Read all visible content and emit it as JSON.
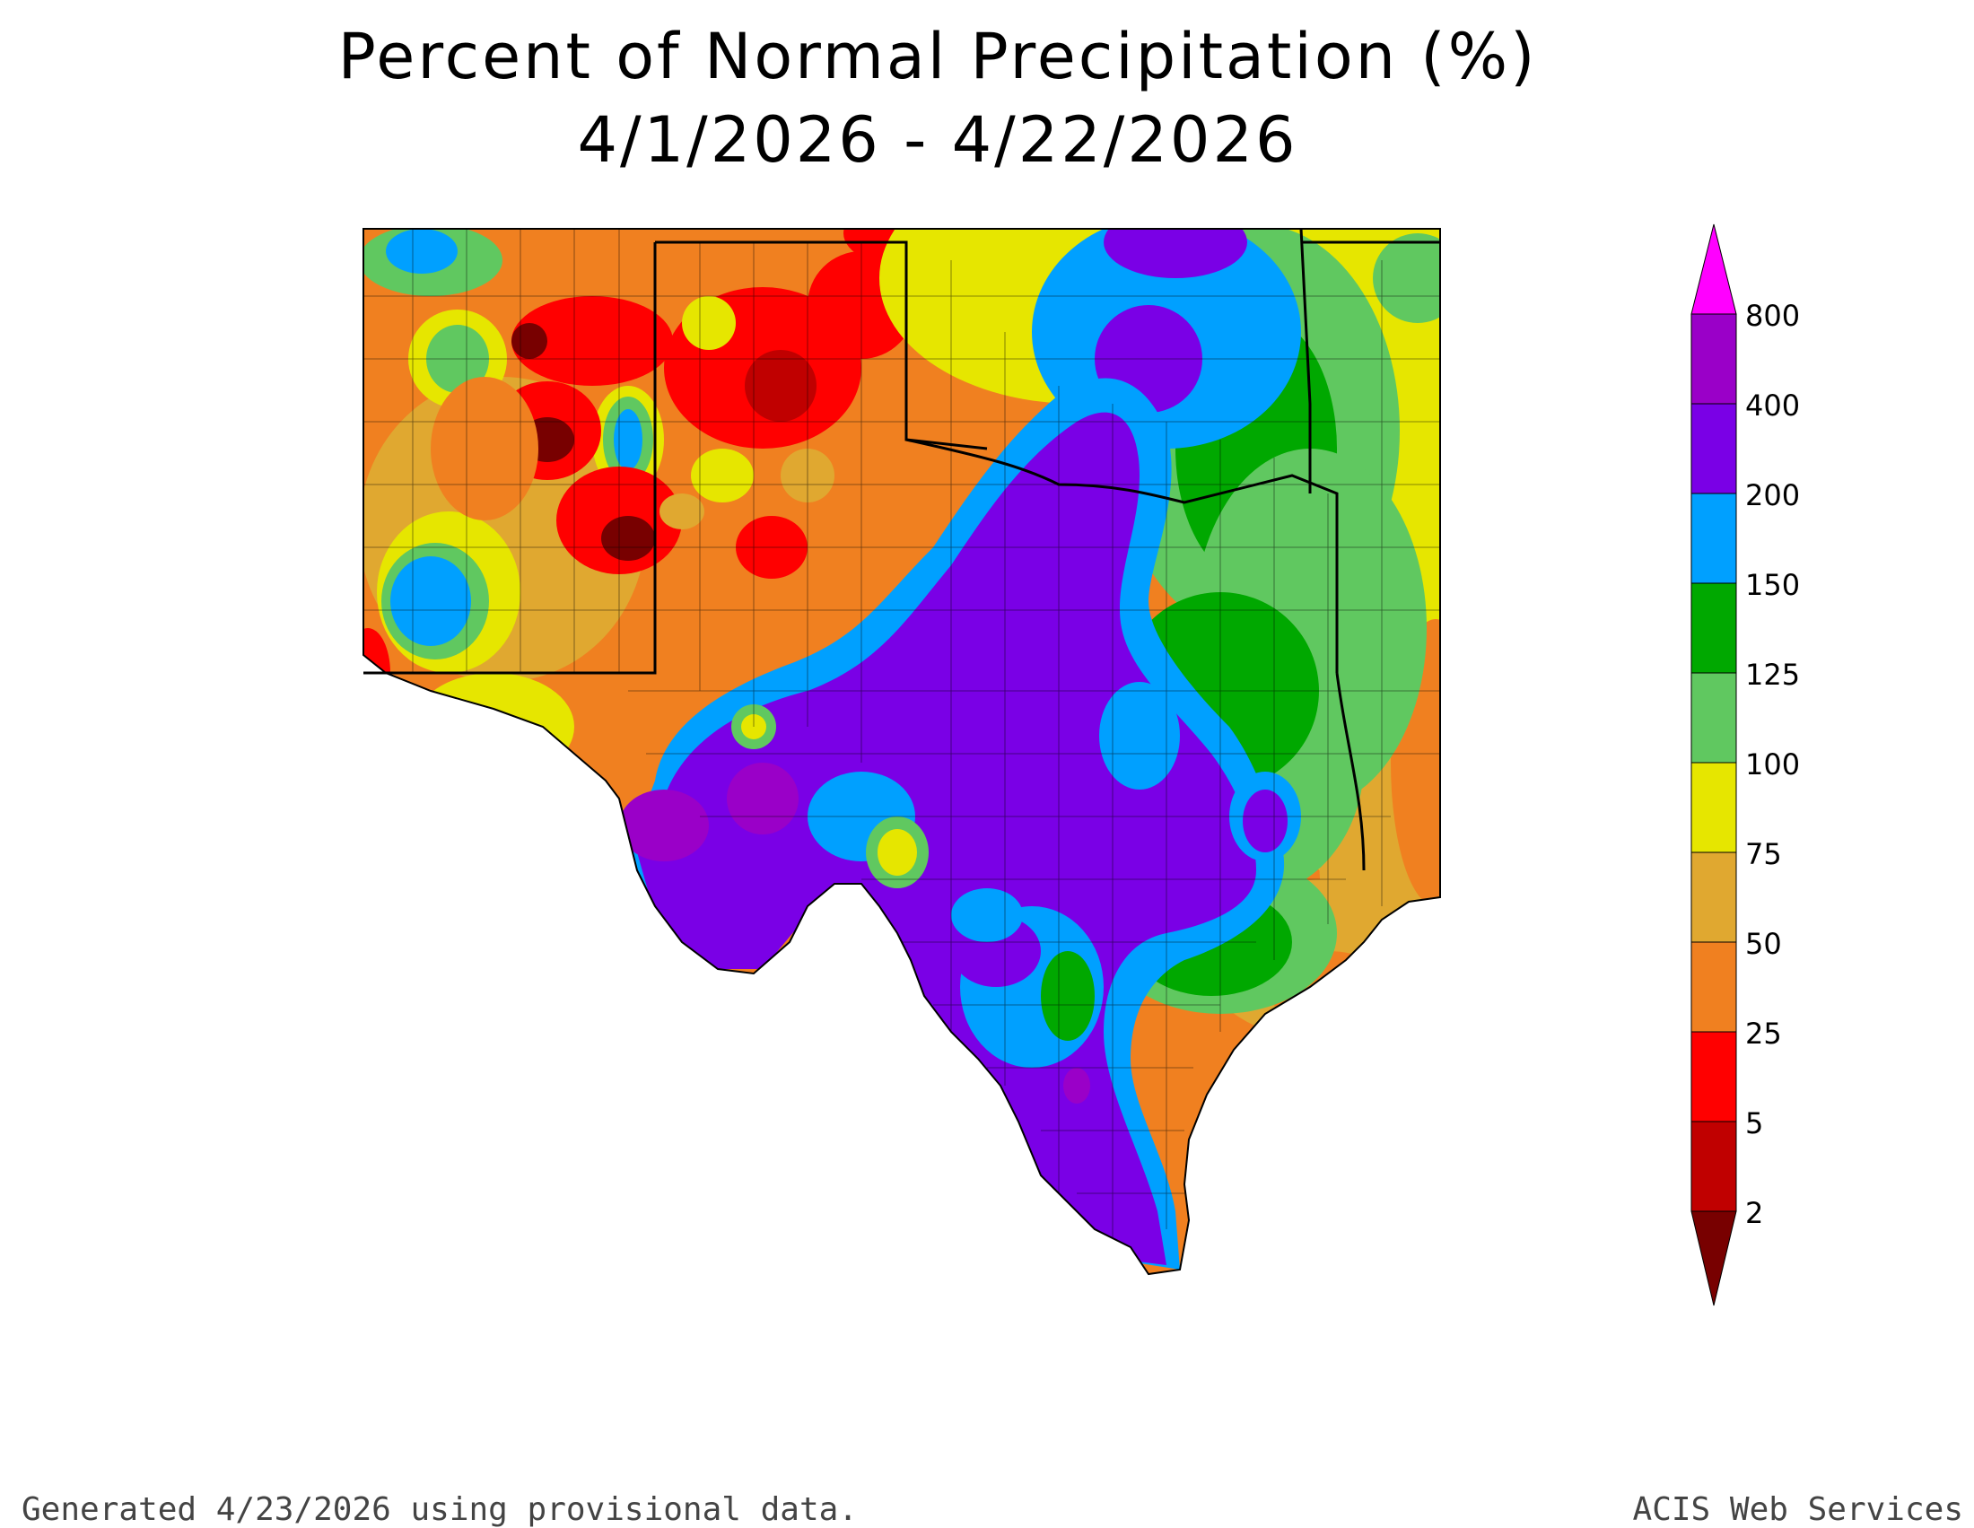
{
  "title": "Percent of Normal Precipitation (%)",
  "subtitle": "4/1/2026 - 4/22/2026",
  "legend": {
    "ticks": [
      "800",
      "400",
      "200",
      "150",
      "125",
      "100",
      "75",
      "50",
      "25",
      "5",
      "2"
    ],
    "colors": [
      "#ff00ff",
      "#9a00c8",
      "#7a00e6",
      "#00a0ff",
      "#00a800",
      "#60c860",
      "#e6e600",
      "#e0a830",
      "#f08020",
      "#ff0000",
      "#c00000",
      "#780000"
    ]
  },
  "colors": {
    "purple": "#7a00e6",
    "violet": "#9a00c8",
    "blue": "#00a0ff",
    "dkgreen": "#00a800",
    "ltgreen": "#60c860",
    "yellow": "#e6e600",
    "gold": "#e0a830",
    "orange": "#f08020",
    "red": "#ff0000",
    "dkred": "#c00000",
    "maroon": "#780000"
  },
  "footer": {
    "left": "Generated 4/23/2026  using provisional data.",
    "right": "ACIS Web Services"
  }
}
